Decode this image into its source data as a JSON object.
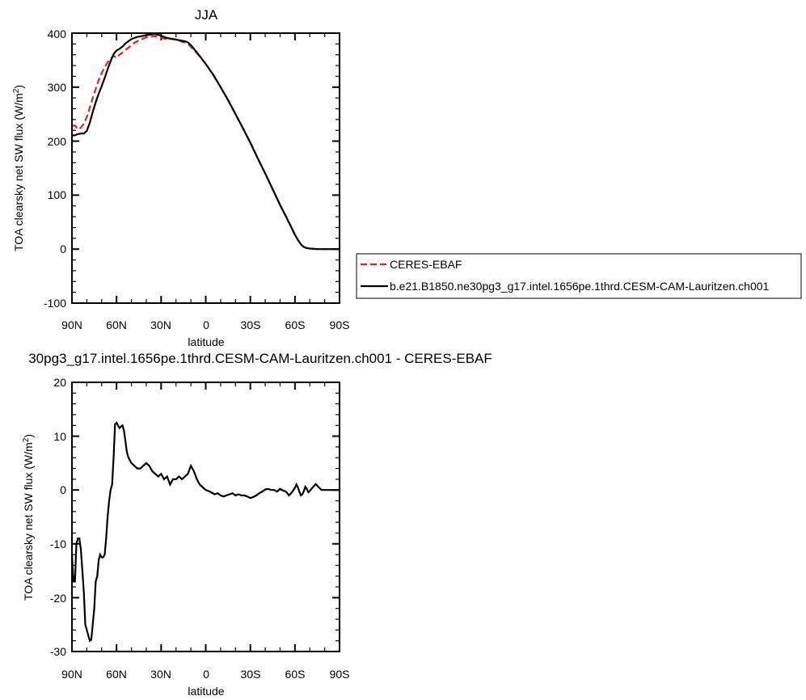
{
  "chart_data": [
    {
      "type": "line",
      "title": "JJA",
      "xlabel": "latitude",
      "ylabel_main": "TOA clearsky net SW flux (W/m",
      "ylabel_sup": "2",
      "ylabel_close": ")",
      "xlim": [
        90,
        -90
      ],
      "ylim": [
        -100,
        400
      ],
      "x_ticks": [
        90,
        60,
        30,
        0,
        -30,
        -60,
        -90
      ],
      "x_tick_labels": [
        "90N",
        "60N",
        "30N",
        "0",
        "30S",
        "60S",
        "90S"
      ],
      "y_ticks": [
        -100,
        0,
        100,
        200,
        300,
        400
      ],
      "y_tick_labels": [
        "-100",
        "0",
        "100",
        "200",
        "300",
        "400"
      ],
      "legend_position": "right",
      "series": [
        {
          "name": "CERES-EBAF",
          "color": "#e8211b",
          "dash": "dashed",
          "x": [
            90,
            88,
            86,
            84,
            82,
            80,
            78,
            76,
            74,
            72,
            70,
            68,
            66,
            64,
            62,
            60,
            58,
            56,
            54,
            52,
            50,
            48,
            46,
            44,
            42,
            40,
            38,
            36,
            34,
            32,
            30,
            28,
            26,
            24,
            22,
            20,
            18,
            16,
            14,
            12,
            10,
            5,
            0,
            -5,
            -10,
            -15,
            -20,
            -25,
            -30,
            -35,
            -40,
            -45,
            -50,
            -55,
            -60,
            -62,
            -64,
            -65,
            -66,
            -68,
            -70,
            -75,
            -80,
            -85,
            -90
          ],
          "y": [
            228,
            229,
            222,
            225,
            232,
            245,
            262,
            280,
            297,
            313,
            326,
            337,
            346,
            353,
            358,
            354,
            360,
            364,
            369,
            373,
            378,
            382,
            385,
            388,
            390,
            392,
            393,
            394,
            394,
            393,
            391,
            390,
            389,
            389,
            389,
            388,
            386,
            384,
            383,
            380,
            375,
            360,
            343,
            323,
            300,
            276,
            250,
            224,
            197,
            168,
            140,
            111,
            82,
            55,
            27,
            17,
            9,
            6,
            4,
            2,
            1,
            0,
            0,
            0,
            0
          ]
        },
        {
          "name": "b.e21.B1850.ne30pg3_g17.intel.1656pe.1thrd.CESM-CAM-Lauritzen.ch001",
          "color": "#000000",
          "dash": "solid",
          "x": [
            90,
            88,
            86,
            84,
            82,
            80,
            78,
            76,
            74,
            72,
            70,
            68,
            66,
            64,
            62,
            60,
            58,
            56,
            54,
            52,
            50,
            48,
            46,
            44,
            42,
            40,
            38,
            36,
            34,
            32,
            30,
            28,
            26,
            24,
            22,
            20,
            18,
            16,
            14,
            12,
            10,
            5,
            0,
            -5,
            -10,
            -15,
            -20,
            -25,
            -30,
            -35,
            -40,
            -45,
            -50,
            -55,
            -60,
            -62,
            -64,
            -65,
            -66,
            -68,
            -70,
            -75,
            -80,
            -85,
            -90
          ],
          "y": [
            210,
            211,
            213,
            214,
            214,
            219,
            234,
            254,
            272,
            288,
            302,
            317,
            333,
            348,
            361,
            368,
            371,
            375,
            381,
            385,
            389,
            391,
            393,
            394,
            395,
            396,
            397,
            398,
            398,
            397,
            395,
            393,
            391,
            390,
            389,
            388,
            387,
            386,
            385,
            383,
            378,
            361,
            343,
            323,
            300,
            276,
            250,
            224,
            197,
            168,
            140,
            111,
            82,
            55,
            27,
            17,
            9,
            6,
            4,
            2,
            1,
            0,
            0,
            0,
            0
          ]
        }
      ]
    },
    {
      "type": "line",
      "title": "30pg3_g17.intel.1656pe.1thrd.CESM-CAM-Lauritzen.ch001 - CERES-EBAF",
      "xlabel": "latitude",
      "ylabel_main": "TOA clearsky net SW flux (W/m",
      "ylabel_sup": "2",
      "ylabel_close": ")",
      "xlim": [
        90,
        -90
      ],
      "ylim": [
        -30,
        20
      ],
      "x_ticks": [
        90,
        60,
        30,
        0,
        -30,
        -60,
        -90
      ],
      "x_tick_labels": [
        "90N",
        "60N",
        "30N",
        "0",
        "30S",
        "60S",
        "90S"
      ],
      "y_ticks": [
        -30,
        -20,
        -10,
        0,
        10,
        20
      ],
      "y_tick_labels": [
        "-30",
        "-20",
        "-10",
        "0",
        "10",
        "20"
      ],
      "series": [
        {
          "color": "#000000",
          "dash": "solid",
          "x": [
            90,
            89,
            88,
            87,
            86,
            85,
            84,
            83,
            82,
            81,
            80,
            79,
            78,
            77,
            76,
            75,
            74,
            73,
            72,
            71,
            70,
            69,
            68,
            67,
            66,
            65,
            64,
            63,
            62,
            61,
            60,
            59,
            58,
            57,
            56,
            55,
            54,
            53,
            52,
            50,
            48,
            46,
            44,
            42,
            40,
            38,
            36,
            34,
            32,
            30,
            28,
            26,
            24,
            22,
            20,
            18,
            16,
            14,
            12,
            10,
            8,
            6,
            4,
            2,
            0,
            -2,
            -4,
            -6,
            -8,
            -10,
            -12,
            -14,
            -16,
            -18,
            -20,
            -22,
            -24,
            -26,
            -28,
            -30,
            -32,
            -34,
            -36,
            -38,
            -40,
            -42,
            -44,
            -46,
            -48,
            -50,
            -52,
            -54,
            -56,
            -58,
            -60,
            -61,
            -62,
            -63,
            -64,
            -65,
            -66,
            -67,
            -68,
            -69,
            -70,
            -71,
            -72,
            -73,
            -74,
            -76,
            -78,
            -80,
            -82,
            -84,
            -86,
            -88,
            -90
          ],
          "y": [
            -12,
            -17,
            -17,
            -10,
            -9,
            -9,
            -11,
            -15,
            -19,
            -25,
            -26,
            -27,
            -28,
            -27.8,
            -25,
            -22,
            -17,
            -16,
            -13,
            -12,
            -12.5,
            -12.5,
            -12,
            -9,
            -5,
            -2,
            0,
            1,
            6,
            12.2,
            12.5,
            12.0,
            11.5,
            11.8,
            12.0,
            11.0,
            9.0,
            7.0,
            6.0,
            5.0,
            4.5,
            4.0,
            4.0,
            4.5,
            5.0,
            4.5,
            3.5,
            3.0,
            2.5,
            3.0,
            2.0,
            2.5,
            1.0,
            2.0,
            2.0,
            2.5,
            2.0,
            2.5,
            3.0,
            4.5,
            3.5,
            2.0,
            1.0,
            0.5,
            0.0,
            -0.2,
            -0.5,
            -0.8,
            -0.6,
            -1.0,
            -1.2,
            -1.0,
            -0.8,
            -0.6,
            -1.0,
            -0.8,
            -1.0,
            -1.0,
            -1.2,
            -1.5,
            -1.3,
            -1.0,
            -0.6,
            -0.3,
            0.1,
            0.2,
            0.0,
            0.0,
            -0.3,
            0.2,
            -0.1,
            -0.3,
            -1.0,
            -0.4,
            0.4,
            1.0,
            0.5,
            -0.3,
            -1.0,
            -0.8,
            -0.2,
            0.6,
            0.2,
            -0.4,
            -0.2,
            0.2,
            0.5,
            0.8,
            1.1,
            0.5,
            0.0,
            0.0,
            0.0,
            0.0,
            0.0,
            0.0,
            0.0
          ]
        }
      ]
    }
  ]
}
